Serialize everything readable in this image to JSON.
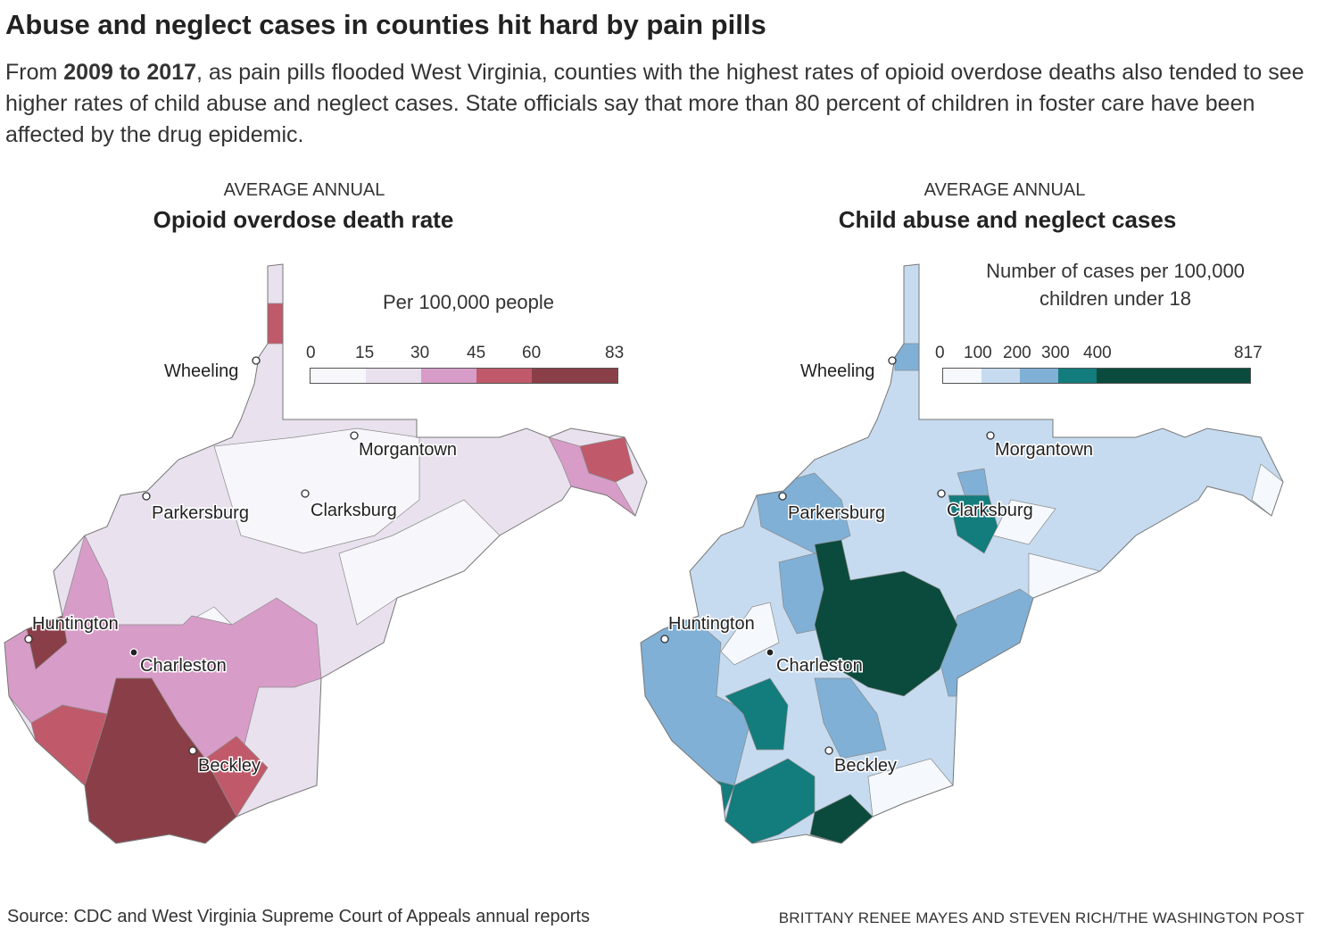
{
  "header": {
    "title": "Abuse and neglect cases in counties hit hard by pain pills",
    "dek_pre": "From ",
    "dek_bold": "2009 to 2017",
    "dek_post": ", as pain pills flooded West Virginia, counties with the highest rates of opioid overdose deaths also tended to see higher rates of child abuse and neglect cases. State officials say that more than 80 percent of children in foster care have been affected by the drug epidemic."
  },
  "maps": [
    {
      "kicker": "AVERAGE ANNUAL",
      "title": "Opioid overdose death rate",
      "legend_title": "Per 100,000 people",
      "legend_ticks": [
        "0",
        "15",
        "30",
        "45",
        "60",
        "83"
      ],
      "legend_colors": [
        "#f7f6fa",
        "#e9e1ee",
        "#d89cc8",
        "#c05a6a",
        "#8a3f48"
      ]
    },
    {
      "kicker": "AVERAGE ANNUAL",
      "title": "Child abuse and neglect cases",
      "legend_title_line1": "Number of cases per 100,000",
      "legend_title_line2": "children under 18",
      "legend_ticks": [
        "0",
        "100",
        "200",
        "300",
        "400",
        "817"
      ],
      "legend_colors": [
        "#f5f9fd",
        "#c6dbef",
        "#80b0d6",
        "#137c7c",
        "#0b4b3d"
      ]
    }
  ],
  "cities": [
    "Wheeling",
    "Morgantown",
    "Parkersburg",
    "Clarksburg",
    "Huntington",
    "Charleston",
    "Beckley"
  ],
  "footer": {
    "source": "Source: CDC and West Virginia Supreme Court of Appeals annual reports",
    "credit": "BRITTANY RENEE MAYES AND STEVEN RICH/THE WASHINGTON POST"
  }
}
